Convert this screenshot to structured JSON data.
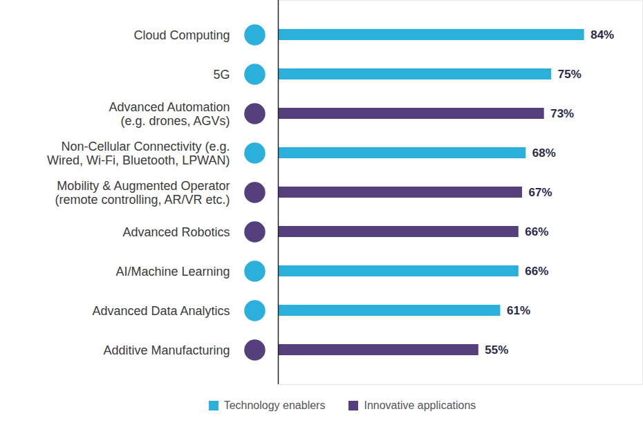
{
  "chart_data": {
    "type": "bar",
    "orientation": "horizontal",
    "categories": [
      "Cloud Computing",
      "5G",
      "Advanced Automation\n(e.g. drones, AGVs)",
      "Non-Cellular Connectivity (e.g.\nWired, Wi-Fi, Bluetooth, LPWAN)",
      "Mobility & Augmented Operator\n(remote controlling, AR/VR etc.)",
      "Advanced Robotics",
      "AI/Machine Learning",
      "Advanced Data Analytics",
      "Additive Manufacturing"
    ],
    "series": [
      {
        "name": "Technology enablers",
        "color": "#2bb0dc",
        "values": [
          84,
          75,
          null,
          68,
          null,
          null,
          66,
          61,
          null
        ],
        "value_labels": [
          "84%",
          "75%",
          null,
          "68%",
          null,
          null,
          "66%",
          "61%",
          null
        ]
      },
      {
        "name": "Innovative applications",
        "color": "#553f7c",
        "values": [
          null,
          null,
          73,
          null,
          67,
          66,
          null,
          null,
          55
        ],
        "value_labels": [
          null,
          null,
          "73%",
          null,
          "67%",
          "66%",
          null,
          null,
          "55%"
        ]
      }
    ],
    "xlim": [
      0,
      100
    ],
    "stacked": false,
    "data_labels": true,
    "tick_labels": "y",
    "legend": "bottom",
    "grid": false
  }
}
